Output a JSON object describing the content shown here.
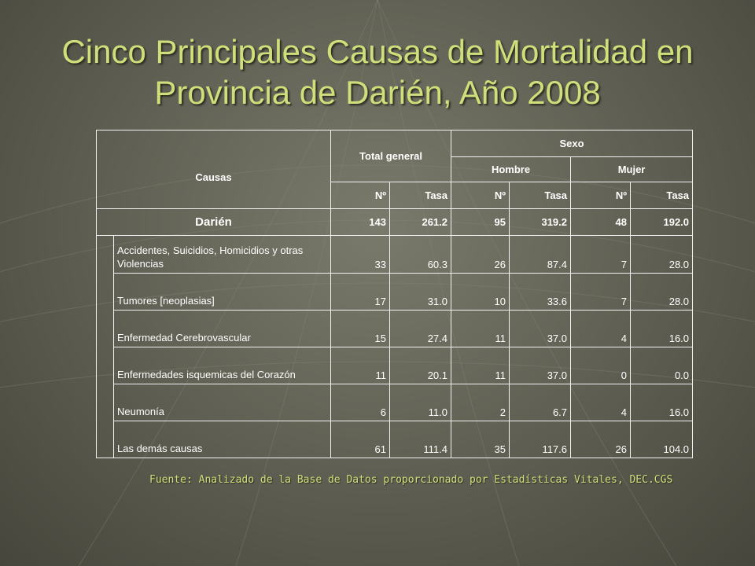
{
  "slide": {
    "title_line1": "Cinco Principales Causas de Mortalidad en",
    "title_line2": "Provincia de Darién, Año 2008",
    "source": "Fuente: Analizado de la Base de Datos proporcionado por Estadísticas Vitales,  DEC.CGS"
  },
  "table": {
    "headers": {
      "causas": "Causas",
      "total_general": "Total general",
      "sexo": "Sexo",
      "hombre": "Hombre",
      "mujer": "Mujer",
      "n": "Nº",
      "tasa": "Tasa"
    },
    "total_row": {
      "label": "Darién",
      "total_n": "143",
      "total_tasa": "261.2",
      "hombre_n": "95",
      "hombre_tasa": "319.2",
      "mujer_n": "48",
      "mujer_tasa": "192.0"
    },
    "rows": [
      {
        "cause": "Accidentes, Suicidios, Homicidios y otras Violencias",
        "total_n": "33",
        "total_tasa": "60.3",
        "hombre_n": "26",
        "hombre_tasa": "87.4",
        "mujer_n": "7",
        "mujer_tasa": "28.0"
      },
      {
        "cause": "Tumores [neoplasias]",
        "total_n": "17",
        "total_tasa": "31.0",
        "hombre_n": "10",
        "hombre_tasa": "33.6",
        "mujer_n": "7",
        "mujer_tasa": "28.0"
      },
      {
        "cause": "Enfermedad Cerebrovascular",
        "total_n": "15",
        "total_tasa": "27.4",
        "hombre_n": "11",
        "hombre_tasa": "37.0",
        "mujer_n": "4",
        "mujer_tasa": "16.0"
      },
      {
        "cause": "Enfermedades isquemicas del Corazón",
        "total_n": "11",
        "total_tasa": "20.1",
        "hombre_n": "11",
        "hombre_tasa": "37.0",
        "mujer_n": "0",
        "mujer_tasa": "0.0"
      },
      {
        "cause": "Neumonía",
        "total_n": "6",
        "total_tasa": "11.0",
        "hombre_n": "2",
        "hombre_tasa": "6.7",
        "mujer_n": "4",
        "mujer_tasa": "16.0"
      },
      {
        "cause": "Las demás causas",
        "total_n": "61",
        "total_tasa": "111.4",
        "hombre_n": "35",
        "hombre_tasa": "117.6",
        "mujer_n": "26",
        "mujer_tasa": "104.0"
      }
    ]
  }
}
